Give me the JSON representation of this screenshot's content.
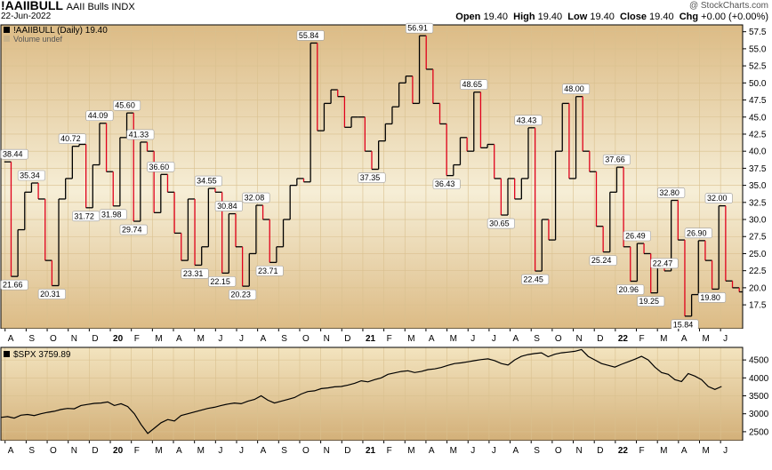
{
  "header": {
    "symbol": "!AAIIBULL",
    "name": "AAII Bulls",
    "exchange": "INDX",
    "date": "22-Jun-2022",
    "credit": "@ StockCharts.com",
    "open_label": "Open",
    "open": "19.40",
    "high_label": "High",
    "high": "19.40",
    "low_label": "Low",
    "low": "19.40",
    "close_label": "Close",
    "close": "19.40",
    "chg_label": "Chg",
    "chg": "+0.00 (+0.00%)"
  },
  "colors": {
    "bg_top": "#f6eed8",
    "bg_mid": "#f3e3b9",
    "bg_bottom": "#dcbb85",
    "up": "#000000",
    "down": "#e0001b",
    "grid": "#d9c08e"
  },
  "chart_data": [
    {
      "type": "line",
      "title": "!AAIIBULL (Daily) 19.40",
      "volume_note": "Volume undef",
      "ylim": [
        14,
        58.5
      ],
      "yticks": [
        17.5,
        20.0,
        22.5,
        25.0,
        27.5,
        30.0,
        32.5,
        35.0,
        37.5,
        40.0,
        42.5,
        45.0,
        47.5,
        50.0,
        52.5,
        55.0,
        57.5
      ],
      "ytick_labels": [
        "17.5",
        "20.0",
        "22.5",
        "25.0",
        "27.5",
        "30.0",
        "32.5",
        "35.0",
        "37.5",
        "40.0",
        "42.5",
        "45.0",
        "47.5",
        "50.0",
        "52.5",
        "55.0",
        "57.5"
      ],
      "x_labels": [
        "A",
        "S",
        "O",
        "N",
        "D",
        "20",
        "F",
        "M",
        "A",
        "M",
        "J",
        "J",
        "A",
        "S",
        "O",
        "N",
        "D",
        "21",
        "F",
        "M",
        "A",
        "M",
        "J",
        "J",
        "A",
        "S",
        "O",
        "N",
        "D",
        "22",
        "F",
        "M",
        "A",
        "M",
        "J"
      ],
      "x_label_months": [
        0,
        1,
        2,
        3,
        4,
        5,
        6,
        7,
        8,
        9,
        10,
        11,
        12,
        13,
        14,
        15,
        16,
        17,
        18,
        19,
        20,
        21,
        22,
        23,
        24,
        25,
        26,
        27,
        28,
        29,
        30,
        31,
        32,
        33,
        34
      ],
      "x_label_year_flags": [
        false,
        false,
        false,
        false,
        false,
        true,
        false,
        false,
        false,
        false,
        false,
        false,
        false,
        false,
        false,
        false,
        false,
        true,
        false,
        false,
        false,
        false,
        false,
        false,
        false,
        false,
        false,
        false,
        false,
        true,
        false,
        false,
        false,
        false,
        false
      ],
      "x_start_month": -0.2,
      "x_end_month": 35.05,
      "values": [
        38.44,
        21.66,
        28.5,
        34.0,
        35.34,
        33.0,
        24.0,
        20.31,
        33.0,
        36.0,
        40.72,
        41.0,
        31.72,
        38.0,
        44.09,
        37.0,
        31.98,
        42.0,
        45.6,
        29.74,
        41.33,
        40.0,
        31.0,
        36.6,
        34.0,
        28.0,
        24.0,
        33.0,
        23.31,
        26.0,
        34.55,
        34.0,
        22.15,
        30.84,
        26.0,
        20.23,
        25.0,
        32.08,
        30.0,
        23.71,
        26.0,
        30.0,
        35.0,
        36.0,
        35.5,
        55.84,
        43.0,
        47.0,
        49.0,
        48.0,
        43.5,
        45.0,
        45.0,
        40.0,
        37.35,
        41.5,
        44.0,
        46.5,
        50.0,
        51.0,
        47.0,
        56.91,
        52.0,
        47.0,
        44.0,
        36.43,
        38.0,
        42.0,
        40.0,
        48.65,
        40.5,
        41.0,
        36.0,
        30.65,
        36.0,
        33.0,
        36.0,
        43.43,
        22.45,
        30.0,
        27.0,
        40.0,
        47.0,
        36.0,
        48.0,
        40.0,
        37.0,
        29.0,
        25.24,
        34.0,
        37.66,
        26.0,
        20.96,
        26.49,
        25.0,
        19.25,
        24.0,
        22.47,
        32.8,
        27.0,
        15.84,
        19.0,
        26.9,
        24.0,
        19.8,
        32.0,
        21.0,
        20.0,
        19.4
      ],
      "labeled_points": [
        {
          "i": 0,
          "text": "38.44",
          "pos": "above"
        },
        {
          "i": 1,
          "text": "21.66",
          "pos": "below"
        },
        {
          "i": 4,
          "text": "35.34",
          "pos": "above"
        },
        {
          "i": 7,
          "text": "20.31",
          "pos": "below"
        },
        {
          "i": 10,
          "text": "40.72",
          "pos": "above"
        },
        {
          "i": 12,
          "text": "31.72",
          "pos": "below"
        },
        {
          "i": 14,
          "text": "44.09",
          "pos": "above"
        },
        {
          "i": 16,
          "text": "31.98",
          "pos": "below"
        },
        {
          "i": 18,
          "text": "45.60",
          "pos": "above"
        },
        {
          "i": 19,
          "text": "29.74",
          "pos": "below"
        },
        {
          "i": 20,
          "text": "41.33",
          "pos": "above"
        },
        {
          "i": 23,
          "text": "36.60",
          "pos": "above"
        },
        {
          "i": 28,
          "text": "23.31",
          "pos": "below"
        },
        {
          "i": 30,
          "text": "34.55",
          "pos": "above"
        },
        {
          "i": 32,
          "text": "22.15",
          "pos": "below"
        },
        {
          "i": 33,
          "text": "30.84",
          "pos": "above"
        },
        {
          "i": 35,
          "text": "20.23",
          "pos": "below"
        },
        {
          "i": 37,
          "text": "32.08",
          "pos": "above"
        },
        {
          "i": 39,
          "text": "23.71",
          "pos": "below"
        },
        {
          "i": 45,
          "text": "55.84",
          "pos": "above"
        },
        {
          "i": 54,
          "text": "37.35",
          "pos": "below"
        },
        {
          "i": 61,
          "text": "56.91",
          "pos": "above"
        },
        {
          "i": 65,
          "text": "36.43",
          "pos": "below"
        },
        {
          "i": 69,
          "text": "48.65",
          "pos": "above"
        },
        {
          "i": 73,
          "text": "30.65",
          "pos": "below"
        },
        {
          "i": 77,
          "text": "43.43",
          "pos": "above"
        },
        {
          "i": 78,
          "text": "22.45",
          "pos": "below"
        },
        {
          "i": 84,
          "text": "48.00",
          "pos": "above"
        },
        {
          "i": 88,
          "text": "25.24",
          "pos": "below"
        },
        {
          "i": 90,
          "text": "37.66",
          "pos": "above"
        },
        {
          "i": 92,
          "text": "20.96",
          "pos": "below"
        },
        {
          "i": 93,
          "text": "26.49",
          "pos": "above"
        },
        {
          "i": 95,
          "text": "19.25",
          "pos": "below"
        },
        {
          "i": 97,
          "text": "22.47",
          "pos": "above"
        },
        {
          "i": 98,
          "text": "32.80",
          "pos": "above"
        },
        {
          "i": 100,
          "text": "15.84",
          "pos": "below"
        },
        {
          "i": 102,
          "text": "26.90",
          "pos": "above"
        },
        {
          "i": 104,
          "text": "19.80",
          "pos": "below"
        },
        {
          "i": 105,
          "text": "32.00",
          "pos": "above"
        }
      ]
    },
    {
      "type": "line",
      "title": "$SPX 3759.89",
      "ylim": [
        2250,
        4850
      ],
      "yticks": [
        2500,
        3000,
        3500,
        4000,
        4500
      ],
      "ytick_labels": [
        "2500",
        "3000",
        "3500",
        "4000",
        "4500"
      ],
      "x_start_month": -0.2,
      "x_end_month": 35.05,
      "values": [
        2900,
        2920,
        2880,
        2960,
        2980,
        2950,
        3000,
        3040,
        3070,
        3120,
        3150,
        3140,
        3230,
        3260,
        3290,
        3300,
        3330,
        3230,
        3280,
        3200,
        3000,
        2700,
        2450,
        2600,
        2750,
        2840,
        2800,
        2950,
        3000,
        3050,
        3100,
        3150,
        3180,
        3230,
        3270,
        3300,
        3280,
        3350,
        3400,
        3500,
        3380,
        3300,
        3350,
        3400,
        3450,
        3550,
        3620,
        3640,
        3700,
        3720,
        3750,
        3760,
        3800,
        3850,
        3920,
        3890,
        3950,
        4000,
        4100,
        4140,
        4180,
        4200,
        4150,
        4180,
        4230,
        4250,
        4290,
        4350,
        4400,
        4420,
        4450,
        4480,
        4510,
        4530,
        4480,
        4400,
        4360,
        4500,
        4600,
        4650,
        4680,
        4700,
        4590,
        4660,
        4700,
        4720,
        4740,
        4790,
        4600,
        4500,
        4400,
        4350,
        4300,
        4380,
        4450,
        4520,
        4600,
        4500,
        4300,
        4150,
        4100,
        3950,
        3900,
        4120,
        4050,
        3950,
        3760,
        3680,
        3760
      ]
    }
  ]
}
